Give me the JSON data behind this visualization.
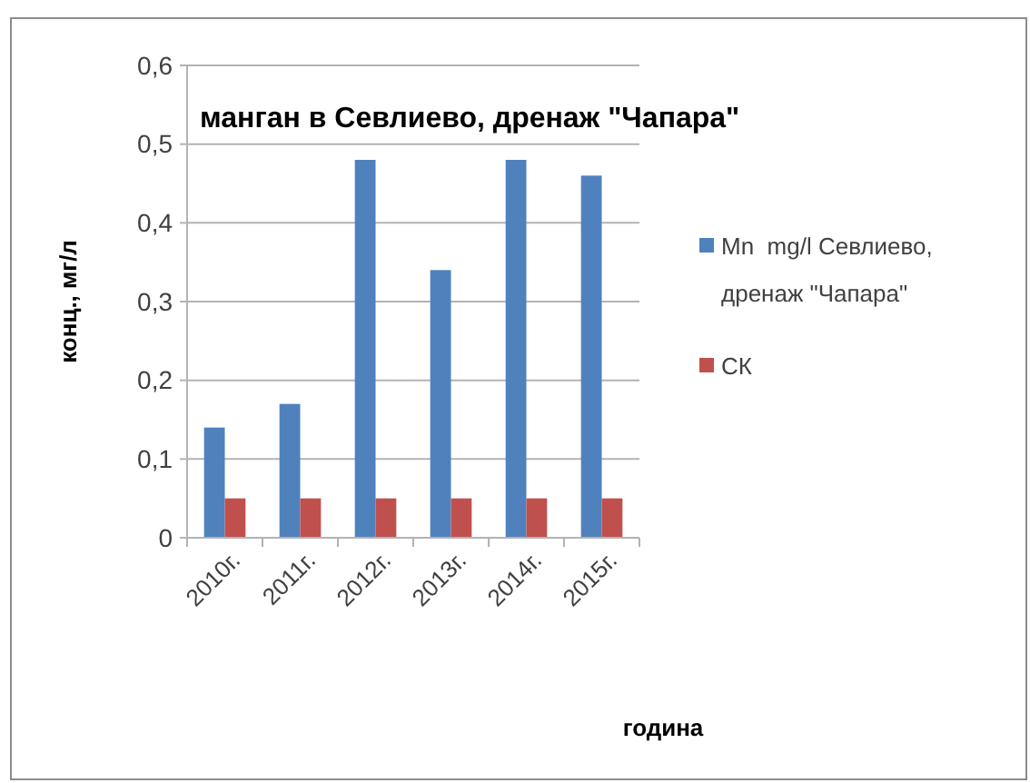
{
  "chart_data": {
    "type": "bar",
    "title": "манган в Севлиево, дренаж \"Чапара\"",
    "xlabel": "година",
    "ylabel": "конц., мг/л",
    "categories": [
      "2010г.",
      "2011г.",
      "2012г.",
      "2013г.",
      "2014г.",
      "2015г."
    ],
    "series": [
      {
        "name": "Mn  mg/l Севлиево, дренаж \"Чапара\"",
        "color": "#4f81bd",
        "values": [
          0.14,
          0.17,
          0.48,
          0.34,
          0.48,
          0.46
        ]
      },
      {
        "name": "СК",
        "color": "#c0504d",
        "values": [
          0.05,
          0.05,
          0.05,
          0.05,
          0.05,
          0.05
        ]
      }
    ],
    "ylim": [
      0,
      0.6
    ],
    "yticks": [
      0,
      {
        "value": 0.1,
        "label": "0,1"
      },
      {
        "value": 0.2,
        "label": "0,2"
      },
      {
        "value": 0.3,
        "label": "0,3"
      },
      {
        "value": 0.4,
        "label": "0,4"
      },
      {
        "value": 0.5,
        "label": "0,5"
      },
      {
        "value": 0.6,
        "label": "0,6"
      }
    ],
    "grid": "y",
    "legend": "right"
  }
}
